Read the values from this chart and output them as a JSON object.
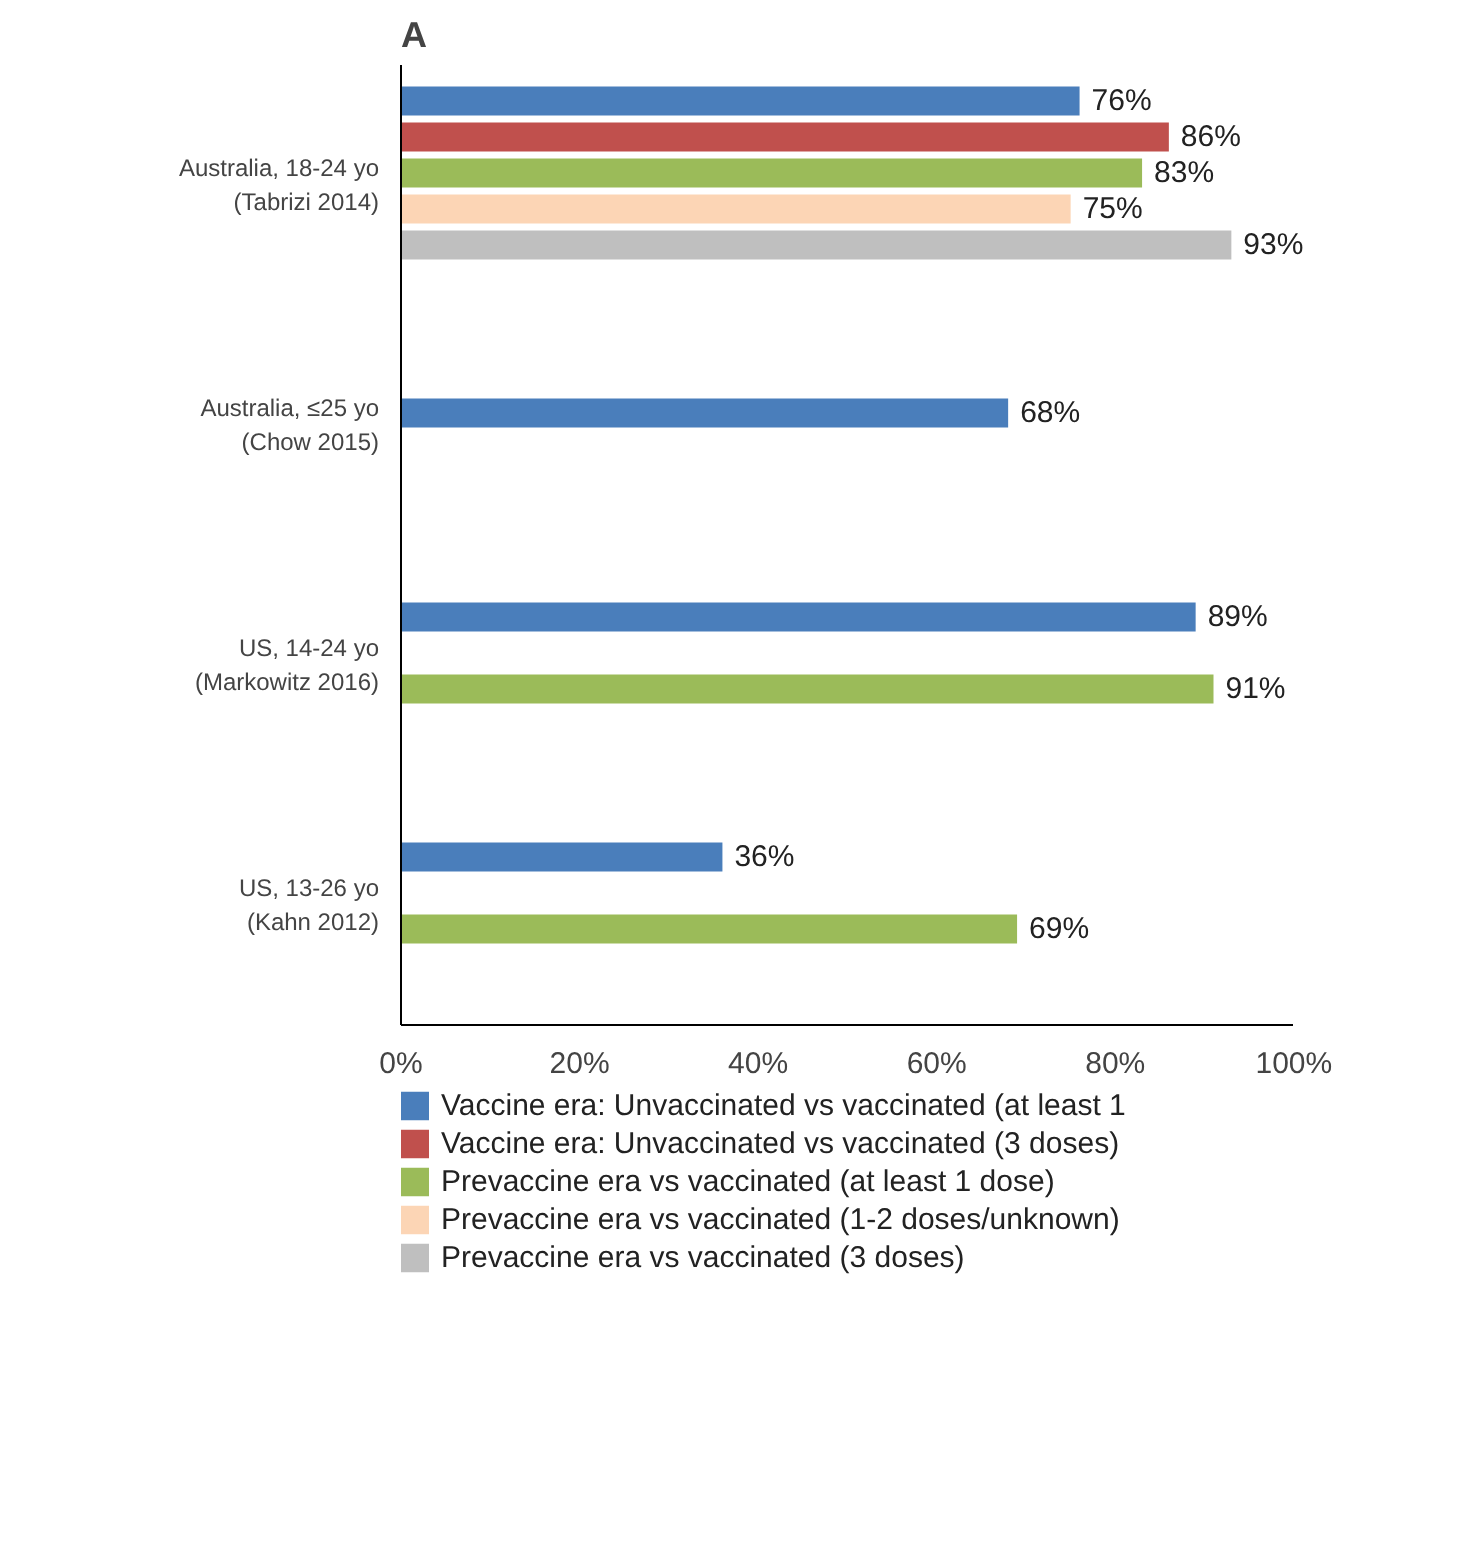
{
  "chart_data": {
    "type": "bar",
    "orientation": "horizontal",
    "title": "A",
    "categories": [
      "Australia, 18-24 yo\n(Tabrizi 2014)",
      "Australia, ≤25 yo\n(Chow 2015)",
      "US, 14-24 yo\n(Markowitz 2016)",
      "US, 13-26 yo\n(Kahn 2012)"
    ],
    "series": [
      {
        "name": "Vaccine era: Unvaccinated vs vaccinated (at least 1",
        "color": "#4a7ebb",
        "values": [
          76,
          68,
          89,
          36
        ],
        "value_labels": [
          "76%",
          "68%",
          "89%",
          "36%"
        ]
      },
      {
        "name": "Vaccine era: Unvaccinated vs vaccinated (3 doses)",
        "color": "#c0504d",
        "values": [
          86,
          null,
          null,
          null
        ],
        "value_labels": [
          "86%",
          null,
          null,
          null
        ]
      },
      {
        "name": "Prevaccine era vs vaccinated (at least 1 dose)",
        "color": "#9bbb59",
        "values": [
          83,
          null,
          91,
          69
        ],
        "value_labels": [
          "83%",
          null,
          "91%",
          "69%"
        ]
      },
      {
        "name": "Prevaccine era vs vaccinated (1-2 doses/unknown)",
        "color": "#fcd5b5",
        "values": [
          75,
          null,
          null,
          null
        ],
        "value_labels": [
          "75%",
          null,
          null,
          null
        ]
      },
      {
        "name": "Prevaccine era vs vaccinated (3 doses)",
        "color": "#bfbfbf",
        "values": [
          93,
          null,
          null,
          null
        ],
        "value_labels": [
          "93%",
          null,
          null,
          null
        ]
      }
    ],
    "xlim": [
      0,
      100
    ],
    "xticks": [
      {
        "value": 0,
        "label": "0%"
      },
      {
        "value": 20,
        "label": "20%"
      },
      {
        "value": 40,
        "label": "40%"
      },
      {
        "value": 60,
        "label": "60%"
      },
      {
        "value": 80,
        "label": "80%"
      },
      {
        "value": 100,
        "label": "100%"
      }
    ],
    "grid": false,
    "legend": "bottom"
  }
}
